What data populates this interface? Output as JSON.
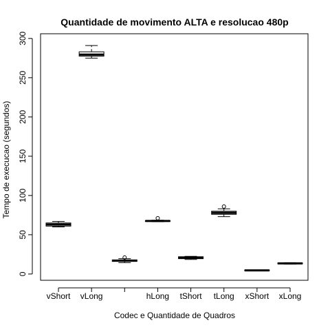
{
  "chart_data": {
    "type": "boxplot",
    "title": "Quantidade de movimento ALTA e resolucao 480p",
    "xlabel": "Codec e Quantidade de Quadros",
    "ylabel": "Tempo de execucao (segundos)",
    "ylim": [
      -8,
      306
    ],
    "yticks": [
      0,
      50,
      100,
      150,
      200,
      250,
      300
    ],
    "categories": [
      "vShort",
      "vLong",
      "",
      "hLong",
      "tShort",
      "tLong",
      "xShort",
      "xLong"
    ],
    "boxes": [
      {
        "category": "vShort",
        "min": 60,
        "q1": 61,
        "median": 63,
        "q3": 65,
        "max": 67,
        "outliers": []
      },
      {
        "category": "vLong",
        "min": 275,
        "q1": 277.5,
        "median": 279.5,
        "q3": 283,
        "max": 291,
        "outliers": []
      },
      {
        "category": "",
        "min": 14.5,
        "q1": 16,
        "median": 17,
        "q3": 18,
        "max": 19.5,
        "outliers": [
          21
        ]
      },
      {
        "category": "hLong",
        "min": 66.5,
        "q1": 67,
        "median": 67.5,
        "q3": 68,
        "max": 68.5,
        "outliers": [
          71
        ]
      },
      {
        "category": "tShort",
        "min": 18.5,
        "q1": 19.5,
        "median": 20.5,
        "q3": 22,
        "max": 22.5,
        "outliers": []
      },
      {
        "category": "tLong",
        "min": 73,
        "q1": 76,
        "median": 78,
        "q3": 80,
        "max": 83,
        "outliers": [
          86
        ]
      },
      {
        "category": "xShort",
        "min": 4,
        "q1": 4.3,
        "median": 4.6,
        "q3": 5,
        "max": 5.2,
        "outliers": []
      },
      {
        "category": "xLong",
        "min": 12.5,
        "q1": 13,
        "median": 13.5,
        "q3": 14,
        "max": 14.5,
        "outliers": []
      }
    ],
    "grid": false,
    "legend": "none"
  }
}
